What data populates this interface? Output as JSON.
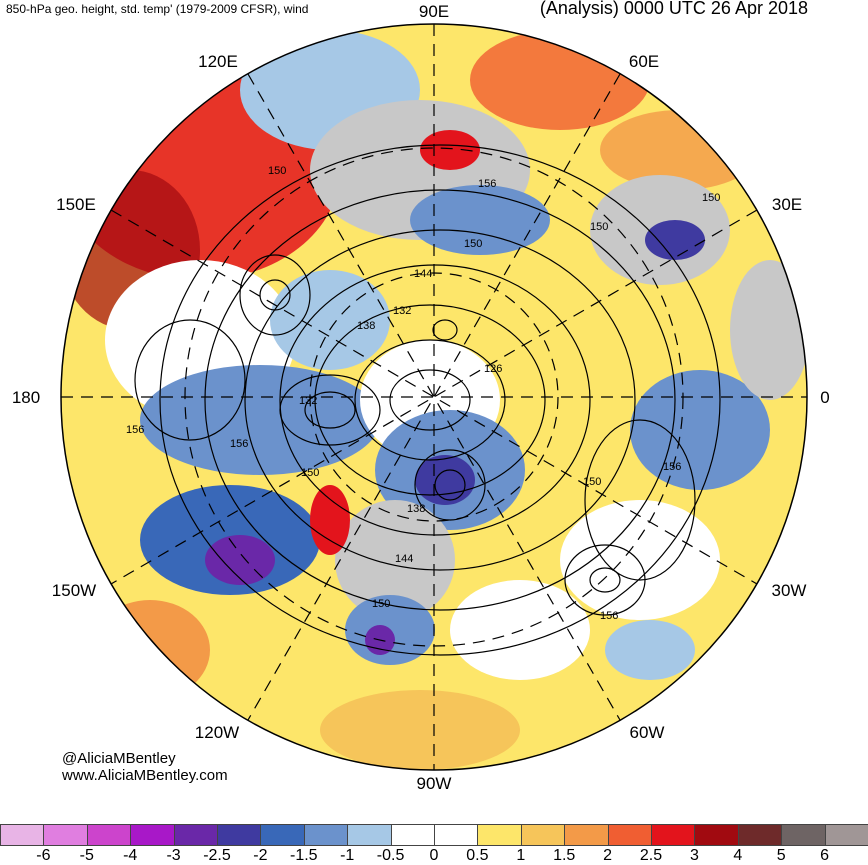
{
  "header": {
    "left_title": "850-hPa geo. height, std. temp' (1979-2009 CFSR), wind",
    "right_title": "(Analysis) 0000 UTC 26 Apr 2018"
  },
  "credits": {
    "handle": "@AliciaMBentley",
    "url": "www.AliciaMBentley.com"
  },
  "longitude_labels": [
    "90E",
    "60E",
    "30E",
    "0",
    "30W",
    "60W",
    "90W",
    "120W",
    "150W",
    "180",
    "150E",
    "120E"
  ],
  "contour_labels": [
    "150",
    "150",
    "156",
    "150",
    "144",
    "132",
    "138",
    "126",
    "132",
    "156",
    "156",
    "150",
    "150",
    "138",
    "144",
    "150",
    "156",
    "150",
    "156"
  ],
  "colorbar": {
    "colors": [
      "#e8b4e6",
      "#e07ee0",
      "#cc44cc",
      "#a818c8",
      "#6a28a8",
      "#3f3aa0",
      "#3968b8",
      "#6b92cc",
      "#a6c8e6",
      "#ffffff",
      "#ffffff",
      "#fde66a",
      "#f6c55a",
      "#f39a48",
      "#f05e32",
      "#e3141c",
      "#a10a10",
      "#6e2a2a",
      "#6e6464",
      "#a09696"
    ],
    "labels": [
      "-6",
      "-5",
      "-4",
      "-3",
      "-2.5",
      "-2",
      "-1.5",
      "-1",
      "-0.5",
      "0",
      "0.5",
      "1",
      "1.5",
      "2",
      "2.5",
      "3",
      "4",
      "5",
      "6"
    ]
  },
  "palette": {
    "land_gray": "#c8c8c8",
    "ocean_white": "#ffffff",
    "contour": "#000000"
  }
}
